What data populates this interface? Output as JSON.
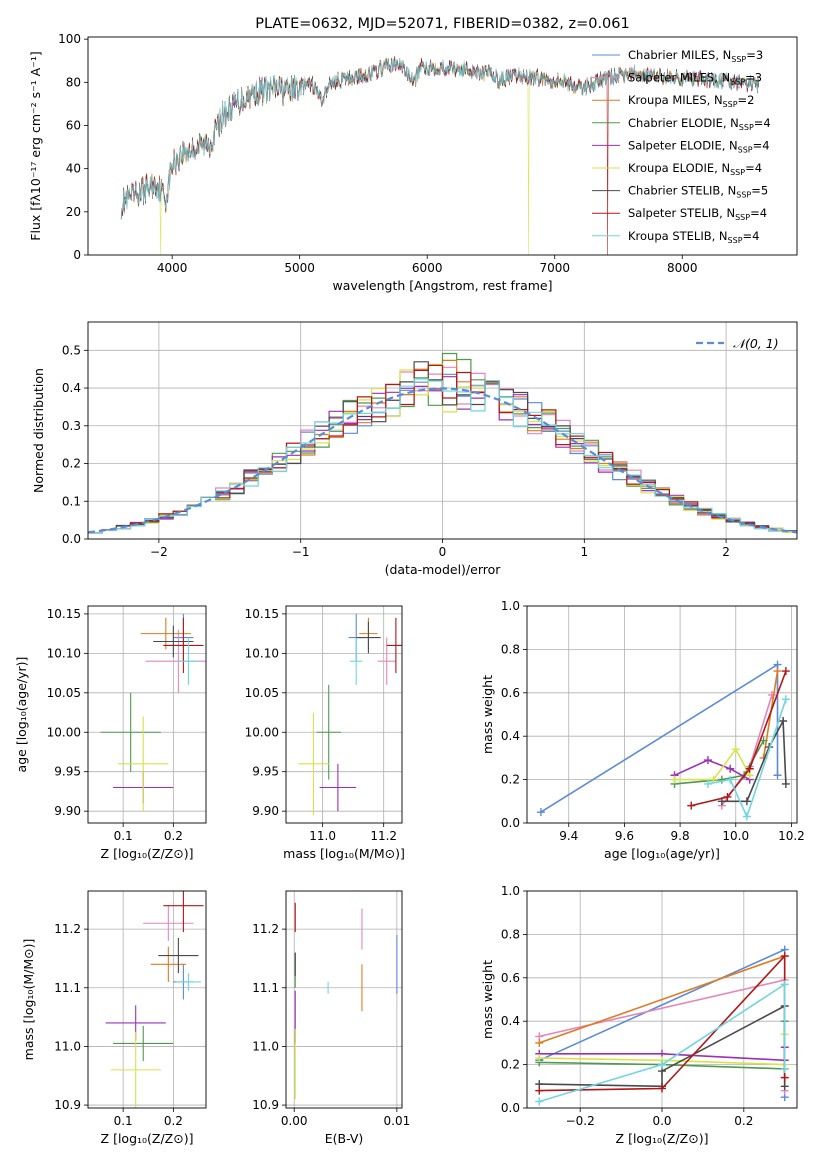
{
  "colors": {
    "Chabrier MILES": "#5b8bd8",
    "Salpeter MILES": "#e586b9",
    "Kroupa MILES": "#e07a20",
    "Chabrier ELODIE": "#4e9a4e",
    "Salpeter ELODIE": "#9b30b8",
    "Kroupa ELODIE": "#d6e34a",
    "Chabrier STELIB": "#4a4a4a",
    "Salpeter STELIB": "#b01818",
    "Kroupa STELIB": "#6fd6e0"
  },
  "chart_data": [
    {
      "id": "spectrum",
      "type": "line",
      "title": "PLATE=0632, MJD=52071, FIBERID=0382, z=0.061",
      "xlabel": "wavelength [Angstrom, rest frame]",
      "ylabel": "Flux [fλ10⁻¹⁷ erg cm⁻² s⁻¹ A⁻¹]",
      "xlim": [
        3340,
        8900
      ],
      "ylim": [
        0,
        101
      ],
      "xticks": [
        "4000",
        "5000",
        "6000",
        "7000",
        "8000"
      ],
      "yticks": [
        "0",
        "20",
        "40",
        "60",
        "80",
        "100"
      ],
      "legend_position": "top-right",
      "legend": [
        {
          "name": "Chabrier MILES",
          "nssp": "3"
        },
        {
          "name": "Salpeter MILES",
          "nssp": "3"
        },
        {
          "name": "Kroupa MILES",
          "nssp": "2"
        },
        {
          "name": "Chabrier ELODIE",
          "nssp": "4"
        },
        {
          "name": "Salpeter ELODIE",
          "nssp": "4"
        },
        {
          "name": "Kroupa ELODIE",
          "nssp": "4"
        },
        {
          "name": "Chabrier STELIB",
          "nssp": "5"
        },
        {
          "name": "Salpeter STELIB",
          "nssp": "4"
        },
        {
          "name": "Kroupa STELIB",
          "nssp": "4"
        }
      ],
      "continuum": [
        [
          3600,
          24
        ],
        [
          3700,
          27
        ],
        [
          3800,
          31
        ],
        [
          3880,
          33
        ],
        [
          3950,
          26
        ],
        [
          4000,
          42
        ],
        [
          4100,
          48
        ],
        [
          4200,
          50
        ],
        [
          4300,
          52
        ],
        [
          4400,
          65
        ],
        [
          4500,
          70
        ],
        [
          4600,
          74
        ],
        [
          4700,
          76
        ],
        [
          4800,
          77
        ],
        [
          4900,
          76
        ],
        [
          5000,
          78
        ],
        [
          5100,
          79
        ],
        [
          5170,
          72
        ],
        [
          5250,
          80
        ],
        [
          5400,
          82
        ],
        [
          5500,
          83
        ],
        [
          5600,
          85
        ],
        [
          5700,
          88
        ],
        [
          5800,
          88
        ],
        [
          5893,
          80
        ],
        [
          5950,
          87
        ],
        [
          6100,
          87
        ],
        [
          6300,
          86
        ],
        [
          6400,
          85
        ],
        [
          6500,
          84
        ],
        [
          6563,
          81
        ],
        [
          6700,
          83
        ],
        [
          6900,
          82
        ],
        [
          7100,
          80
        ],
        [
          7200,
          77
        ],
        [
          7400,
          82
        ],
        [
          7600,
          84
        ],
        [
          7800,
          83
        ],
        [
          8000,
          82
        ],
        [
          8200,
          81
        ],
        [
          8400,
          80
        ],
        [
          8600,
          79
        ]
      ],
      "dropouts": [
        {
          "series": "Kroupa ELODIE",
          "x": 3910
        },
        {
          "series": "Kroupa ELODIE",
          "x": 6795
        },
        {
          "series": "Salpeter STELIB",
          "x": 7415
        }
      ]
    },
    {
      "id": "residuals",
      "type": "line",
      "xlabel": "(data-model)/error",
      "ylabel": "Normed distribution",
      "xlim": [
        -2.5,
        2.5
      ],
      "ylim": [
        0,
        0.575
      ],
      "xticks": [
        "−2",
        "−1",
        "0",
        "1",
        "2"
      ],
      "yticks": [
        "0.0",
        "0.1",
        "0.2",
        "0.3",
        "0.4",
        "0.5"
      ],
      "legend_position": "top-right",
      "reference_label": "𝒩(0, 1)",
      "bin_width": 0.1
    },
    {
      "id": "age-vs-Z",
      "type": "scatter",
      "xlabel": "Z [log₁₀(Z/Z⊙)]",
      "ylabel": "age  [log₁₀(age/yr)]",
      "xlim": [
        0.03,
        0.265
      ],
      "ylim": [
        9.885,
        10.16
      ],
      "xticks": [
        "0.1",
        "0.2"
      ],
      "yticks": [
        "9.90",
        "9.95",
        "10.00",
        "10.05",
        "10.10",
        "10.15"
      ],
      "points": [
        {
          "series": "Chabrier MILES",
          "x": 0.22,
          "y": 10.12,
          "xerr": 0.02,
          "yerr": 0.03
        },
        {
          "series": "Salpeter MILES",
          "x": 0.21,
          "y": 10.09,
          "xerr": 0.065,
          "yerr": 0.04
        },
        {
          "series": "Kroupa MILES",
          "x": 0.185,
          "y": 10.125,
          "xerr": 0.05,
          "yerr": 0.02
        },
        {
          "series": "Chabrier ELODIE",
          "x": 0.115,
          "y": 10.0,
          "xerr": 0.06,
          "yerr": 0.05
        },
        {
          "series": "Salpeter ELODIE",
          "x": 0.14,
          "y": 9.93,
          "xerr": 0.06,
          "yerr": 0.02
        },
        {
          "series": "Kroupa ELODIE",
          "x": 0.14,
          "y": 9.96,
          "xerr": 0.05,
          "yerr": 0.06
        },
        {
          "series": "Chabrier STELIB",
          "x": 0.2,
          "y": 10.115,
          "xerr": 0.04,
          "yerr": 0.02
        },
        {
          "series": "Salpeter STELIB",
          "x": 0.22,
          "y": 10.11,
          "xerr": 0.04,
          "yerr": 0.035
        },
        {
          "series": "Kroupa STELIB",
          "x": 0.23,
          "y": 10.09,
          "xerr": 0.02,
          "yerr": 0.03
        }
      ]
    },
    {
      "id": "age-vs-mass",
      "type": "scatter",
      "xlabel": "mass [log₁₀(M/M⊙)]",
      "ylabel": "",
      "xlim": [
        10.88,
        11.26
      ],
      "ylim": [
        9.885,
        10.16
      ],
      "xticks": [
        "11.0",
        "11.2"
      ],
      "yticks": [
        "9.90",
        "9.95",
        "10.00",
        "10.05",
        "10.10",
        "10.15"
      ],
      "points": [
        {
          "series": "Chabrier MILES",
          "x": 11.11,
          "y": 10.12,
          "xerr": 0.025,
          "yerr": 0.03
        },
        {
          "series": "Salpeter MILES",
          "x": 11.21,
          "y": 10.09,
          "xerr": 0.03,
          "yerr": 0.03
        },
        {
          "series": "Kroupa MILES",
          "x": 11.15,
          "y": 10.125,
          "xerr": 0.03,
          "yerr": 0.02
        },
        {
          "series": "Chabrier ELODIE",
          "x": 11.02,
          "y": 10.0,
          "xerr": 0.04,
          "yerr": 0.06
        },
        {
          "series": "Salpeter ELODIE",
          "x": 11.05,
          "y": 9.93,
          "xerr": 0.06,
          "yerr": 0.03
        },
        {
          "series": "Kroupa ELODIE",
          "x": 10.97,
          "y": 9.96,
          "xerr": 0.05,
          "yerr": 0.065
        },
        {
          "series": "Chabrier STELIB",
          "x": 11.15,
          "y": 10.12,
          "xerr": 0.04,
          "yerr": 0.02
        },
        {
          "series": "Salpeter STELIB",
          "x": 11.24,
          "y": 10.11,
          "xerr": 0.03,
          "yerr": 0.035
        },
        {
          "series": "Kroupa STELIB",
          "x": 11.11,
          "y": 10.09,
          "xerr": 0.02,
          "yerr": 0.03
        }
      ]
    },
    {
      "id": "mass-vs-Z",
      "type": "scatter",
      "xlabel": "Z [log₁₀(Z/Z⊙)]",
      "ylabel": "mass [log₁₀(M/M⊙)]",
      "xlim": [
        0.03,
        0.265
      ],
      "ylim": [
        10.895,
        11.265
      ],
      "xticks": [
        "0.1",
        "0.2"
      ],
      "yticks": [
        "10.9",
        "11.0",
        "11.1",
        "11.2"
      ],
      "points": [
        {
          "series": "Chabrier MILES",
          "x": 0.22,
          "y": 11.11,
          "xerr": 0.02,
          "yerr": 0.03
        },
        {
          "series": "Salpeter MILES",
          "x": 0.19,
          "y": 11.21,
          "xerr": 0.05,
          "yerr": 0.03
        },
        {
          "series": "Kroupa MILES",
          "x": 0.19,
          "y": 11.14,
          "xerr": 0.035,
          "yerr": 0.03
        },
        {
          "series": "Chabrier ELODIE",
          "x": 0.14,
          "y": 11.005,
          "xerr": 0.06,
          "yerr": 0.03
        },
        {
          "series": "Salpeter ELODIE",
          "x": 0.125,
          "y": 11.04,
          "xerr": 0.06,
          "yerr": 0.03
        },
        {
          "series": "Kroupa ELODIE",
          "x": 0.125,
          "y": 10.96,
          "xerr": 0.05,
          "yerr": 0.065
        },
        {
          "series": "Chabrier STELIB",
          "x": 0.21,
          "y": 11.155,
          "xerr": 0.04,
          "yerr": 0.03
        },
        {
          "series": "Salpeter STELIB",
          "x": 0.22,
          "y": 11.24,
          "xerr": 0.04,
          "yerr": 0.045
        },
        {
          "series": "Kroupa STELIB",
          "x": 0.23,
          "y": 11.11,
          "xerr": 0.025,
          "yerr": 0.015
        }
      ]
    },
    {
      "id": "mass-vs-EBV",
      "type": "scatter",
      "xlabel": "E(B-V)",
      "ylabel": "",
      "xlim": [
        -0.0008,
        0.0105
      ],
      "ylim": [
        10.895,
        11.265
      ],
      "xticks": [
        "0.00",
        "0.01"
      ],
      "yticks": [
        "10.9",
        "11.0",
        "11.1",
        "11.2"
      ],
      "points": [
        {
          "series": "Chabrier MILES",
          "x": 0.01,
          "y": 11.14,
          "xerr": 0,
          "yerr": 0.05
        },
        {
          "series": "Salpeter MILES",
          "x": 0.0066,
          "y": 11.2,
          "xerr": 0,
          "yerr": 0.035
        },
        {
          "series": "Kroupa MILES",
          "x": 0.0066,
          "y": 11.1,
          "xerr": 0,
          "yerr": 0.04
        },
        {
          "series": "Chabrier ELODIE",
          "x": 0.0001,
          "y": 11.13,
          "xerr": 0,
          "yerr": 0.03
        },
        {
          "series": "Salpeter ELODIE",
          "x": 0.0001,
          "y": 11.05,
          "xerr": 0,
          "yerr": 0.045
        },
        {
          "series": "Kroupa ELODIE",
          "x": 0.0001,
          "y": 10.97,
          "xerr": 0,
          "yerr": 0.06
        },
        {
          "series": "Chabrier STELIB",
          "x": 0.0001,
          "y": 11.14,
          "xerr": 0,
          "yerr": 0.02
        },
        {
          "series": "Salpeter STELIB",
          "x": 0.0001,
          "y": 11.22,
          "xerr": 0,
          "yerr": 0.025
        },
        {
          "series": "Kroupa STELIB",
          "x": 0.0033,
          "y": 11.1,
          "xerr": 0,
          "yerr": 0.01
        }
      ]
    },
    {
      "id": "weight-vs-age",
      "type": "line",
      "xlabel": "age  [log₁₀(age/yr)]",
      "ylabel": "mass weight",
      "xlim": [
        9.25,
        10.22
      ],
      "ylim": [
        0,
        1
      ],
      "xticks": [
        "9.4",
        "9.6",
        "9.8",
        "10.0",
        "10.2"
      ],
      "yticks": [
        "0.0",
        "0.2",
        "0.4",
        "0.6",
        "0.8",
        "1.0"
      ],
      "series": [
        {
          "name": "Chabrier MILES",
          "points": [
            [
              9.3,
              0.05
            ],
            [
              10.15,
              0.73
            ],
            [
              10.15,
              0.22
            ]
          ]
        },
        {
          "name": "Salpeter MILES",
          "points": [
            [
              9.95,
              0.08
            ],
            [
              10.05,
              0.26
            ],
            [
              10.13,
              0.59
            ]
          ]
        },
        {
          "name": "Kroupa MILES",
          "points": [
            [
              10.1,
              0.3
            ],
            [
              10.15,
              0.7
            ]
          ]
        },
        {
          "name": "Chabrier ELODIE",
          "points": [
            [
              9.78,
              0.18
            ],
            [
              9.95,
              0.2
            ],
            [
              10.03,
              0.22
            ],
            [
              10.1,
              0.38
            ]
          ]
        },
        {
          "name": "Salpeter ELODIE",
          "points": [
            [
              9.78,
              0.22
            ],
            [
              9.9,
              0.29
            ],
            [
              9.98,
              0.25
            ],
            [
              10.05,
              0.2
            ]
          ]
        },
        {
          "name": "Kroupa ELODIE",
          "points": [
            [
              9.78,
              0.2
            ],
            [
              9.92,
              0.2
            ],
            [
              10.0,
              0.34
            ],
            [
              10.05,
              0.22
            ]
          ]
        },
        {
          "name": "Chabrier STELIB",
          "points": [
            [
              9.95,
              0.1
            ],
            [
              10.04,
              0.1
            ],
            [
              10.12,
              0.35
            ],
            [
              10.17,
              0.47
            ],
            [
              10.18,
              0.18
            ]
          ]
        },
        {
          "name": "Salpeter STELIB",
          "points": [
            [
              9.84,
              0.08
            ],
            [
              9.97,
              0.12
            ],
            [
              10.05,
              0.25
            ],
            [
              10.18,
              0.7
            ]
          ]
        },
        {
          "name": "Kroupa STELIB",
          "points": [
            [
              9.9,
              0.18
            ],
            [
              9.98,
              0.2
            ],
            [
              10.04,
              0.03
            ],
            [
              10.18,
              0.57
            ]
          ]
        }
      ]
    },
    {
      "id": "weight-vs-Z",
      "type": "line",
      "xlabel": "Z [log₁₀(Z/Z⊙)]",
      "ylabel": "mass weight",
      "xlim": [
        -0.33,
        0.33
      ],
      "ylim": [
        0,
        1
      ],
      "xticks": [
        "−0.2",
        "0.0",
        "0.2"
      ],
      "yticks": [
        "0.0",
        "0.2",
        "0.4",
        "0.6",
        "0.8",
        "1.0"
      ],
      "series": [
        {
          "name": "Chabrier MILES",
          "points": [
            [
              -0.3,
              0.22
            ],
            [
              0.3,
              0.73
            ],
            [
              0.3,
              0.05
            ]
          ]
        },
        {
          "name": "Salpeter MILES",
          "points": [
            [
              -0.3,
              0.33
            ],
            [
              0.3,
              0.59
            ],
            [
              0.3,
              0.08
            ]
          ]
        },
        {
          "name": "Kroupa MILES",
          "points": [
            [
              -0.3,
              0.3
            ],
            [
              0.3,
              0.7
            ]
          ]
        },
        {
          "name": "Chabrier ELODIE",
          "points": [
            [
              -0.3,
              0.21
            ],
            [
              0.0,
              0.2
            ],
            [
              0.3,
              0.18
            ],
            [
              0.3,
              0.4
            ]
          ]
        },
        {
          "name": "Salpeter ELODIE",
          "points": [
            [
              -0.3,
              0.25
            ],
            [
              0.0,
              0.25
            ],
            [
              0.3,
              0.22
            ],
            [
              0.3,
              0.28
            ]
          ]
        },
        {
          "name": "Kroupa ELODIE",
          "points": [
            [
              -0.3,
              0.23
            ],
            [
              0.0,
              0.22
            ],
            [
              0.3,
              0.2
            ],
            [
              0.3,
              0.34
            ]
          ]
        },
        {
          "name": "Chabrier STELIB",
          "points": [
            [
              -0.3,
              0.11
            ],
            [
              0.0,
              0.1
            ],
            [
              0.0,
              0.17
            ],
            [
              0.3,
              0.47
            ],
            [
              0.3,
              0.1
            ]
          ]
        },
        {
          "name": "Salpeter STELIB",
          "points": [
            [
              -0.3,
              0.08
            ],
            [
              0.0,
              0.09
            ],
            [
              0.3,
              0.7
            ],
            [
              0.3,
              0.14
            ]
          ]
        },
        {
          "name": "Kroupa STELIB",
          "points": [
            [
              -0.3,
              0.03
            ],
            [
              0.0,
              0.2
            ],
            [
              0.3,
              0.57
            ],
            [
              0.3,
              0.18
            ]
          ]
        }
      ]
    }
  ]
}
